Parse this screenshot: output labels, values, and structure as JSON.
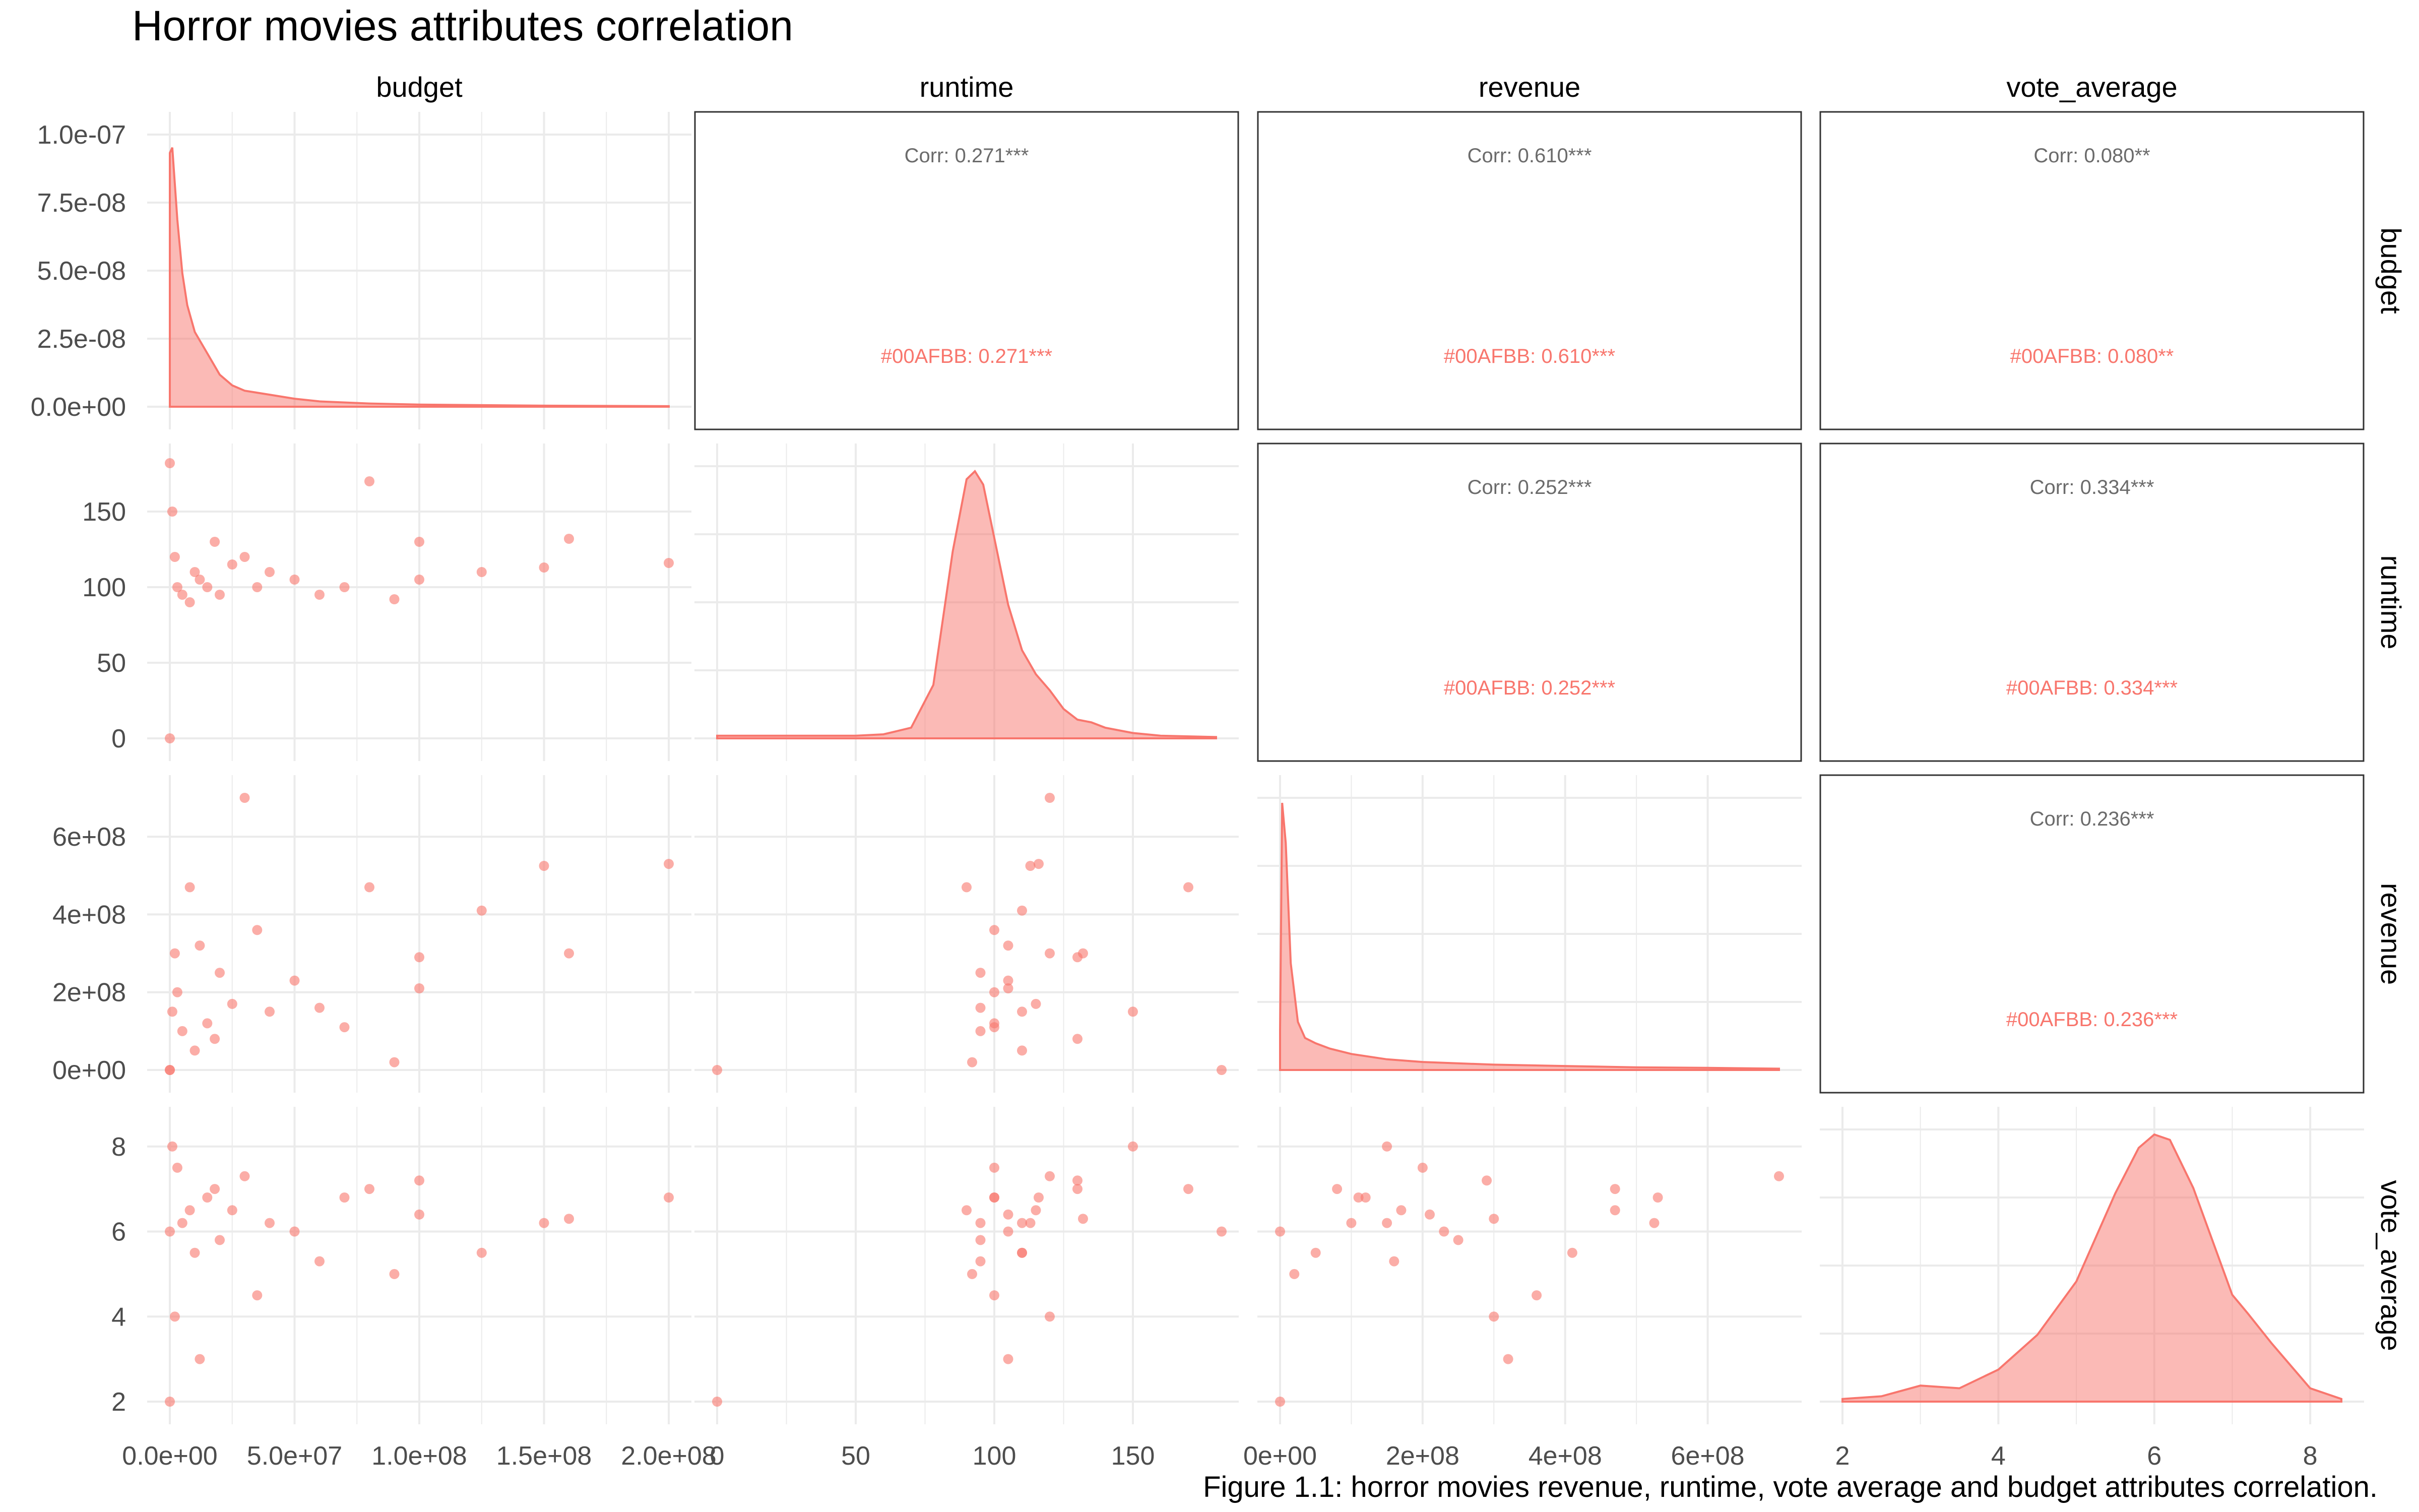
{
  "title": "Horror movies attributes correlation",
  "caption": "Figure 1.1: horror movies revenue, runtime, vote average and budget attributes correlation.",
  "colors": {
    "series": "#F8766D",
    "fill": "#F8766D",
    "corr_text": "#6b6b6b",
    "grid": "#ebebeb",
    "text": "#000000",
    "axis_text": "#4d4d4d"
  },
  "chart_data": {
    "type": "scatter",
    "variables": [
      "budget",
      "runtime",
      "revenue",
      "vote_average"
    ],
    "grid": true,
    "axes": {
      "budget": {
        "range": [
          0,
          200000000
        ],
        "ticks": [
          0,
          50000000,
          100000000,
          150000000,
          200000000
        ],
        "tick_labels": [
          "0.0e+00",
          "5.0e+07",
          "1.0e+08",
          "1.5e+08",
          "2.0e+08"
        ]
      },
      "runtime": {
        "range": [
          0,
          180
        ],
        "ticks": [
          0,
          50,
          100,
          150
        ],
        "tick_labels": [
          "0",
          "50",
          "100",
          "150"
        ]
      },
      "revenue": {
        "range": [
          0,
          700000000
        ],
        "ticks": [
          0,
          200000000,
          400000000,
          600000000
        ],
        "tick_labels": [
          "0e+00",
          "2e+08",
          "4e+08",
          "6e+08"
        ]
      },
      "vote_average": {
        "range": [
          2,
          8.4
        ],
        "ticks": [
          2,
          4,
          6,
          8
        ],
        "tick_labels": [
          "2",
          "4",
          "6",
          "8"
        ]
      }
    },
    "density_axis": {
      "range": [
        0,
        1e-07
      ],
      "ticks": [
        0,
        2.5e-08,
        5e-08,
        7.5e-08,
        1e-07
      ],
      "tick_labels": [
        "0.0e+00",
        "2.5e-08",
        "5.0e-08",
        "7.5e-08",
        "1.0e-07"
      ]
    },
    "densities": {
      "budget": {
        "x": [
          0,
          1000000.0,
          3000000.0,
          5000000.0,
          7000000.0,
          10000000.0,
          15000000.0,
          20000000.0,
          25000000.0,
          30000000.0,
          40000000.0,
          50000000.0,
          60000000.0,
          80000000.0,
          100000000.0,
          150000000.0,
          200000000.0
        ],
        "y": [
          0.95,
          0.97,
          0.7,
          0.5,
          0.38,
          0.28,
          0.2,
          0.12,
          0.08,
          0.06,
          0.045,
          0.03,
          0.02,
          0.012,
          0.008,
          0.004,
          0.002
        ]
      },
      "runtime": {
        "x": [
          0,
          50,
          60,
          70,
          78,
          85,
          90,
          93,
          96,
          100,
          105,
          110,
          115,
          120,
          125,
          130,
          135,
          140,
          150,
          160,
          180
        ],
        "y": [
          0.01,
          0.01,
          0.015,
          0.04,
          0.2,
          0.7,
          0.97,
          1.0,
          0.95,
          0.75,
          0.5,
          0.33,
          0.24,
          0.18,
          0.11,
          0.07,
          0.06,
          0.04,
          0.02,
          0.01,
          0.005
        ]
      },
      "revenue": {
        "x": [
          0,
          3000000.0,
          8000000.0,
          15000000.0,
          25000000.0,
          35000000.0,
          50000000.0,
          70000000.0,
          100000000.0,
          150000000.0,
          200000000.0,
          300000000.0,
          400000000.0,
          500000000.0,
          600000000.0,
          700000000.0
        ],
        "y": [
          0.15,
          1.0,
          0.85,
          0.4,
          0.18,
          0.12,
          0.1,
          0.08,
          0.06,
          0.04,
          0.03,
          0.02,
          0.015,
          0.01,
          0.008,
          0.005
        ]
      },
      "vote_average": {
        "x": [
          2,
          2.5,
          3,
          3.5,
          4,
          4.5,
          5,
          5.5,
          5.8,
          6,
          6.2,
          6.5,
          7,
          7.2,
          7.5,
          8,
          8.4
        ],
        "y": [
          0.01,
          0.02,
          0.06,
          0.05,
          0.12,
          0.25,
          0.45,
          0.78,
          0.95,
          1.0,
          0.98,
          0.8,
          0.4,
          0.33,
          0.22,
          0.05,
          0.01
        ]
      }
    },
    "correlations": [
      {
        "row": "budget",
        "col": "runtime",
        "overall": "Corr: 0.271***",
        "group": "#00AFBB: 0.271***"
      },
      {
        "row": "budget",
        "col": "revenue",
        "overall": "Corr: 0.610***",
        "group": "#00AFBB: 0.610***"
      },
      {
        "row": "budget",
        "col": "vote_average",
        "overall": "Corr: 0.080**",
        "group": "#00AFBB: 0.080**"
      },
      {
        "row": "runtime",
        "col": "revenue",
        "overall": "Corr: 0.252***",
        "group": "#00AFBB: 0.252***"
      },
      {
        "row": "runtime",
        "col": "vote_average",
        "overall": "Corr: 0.334***",
        "group": "#00AFBB: 0.334***"
      },
      {
        "row": "revenue",
        "col": "vote_average",
        "overall": "Corr: 0.236***",
        "group": "#00AFBB: 0.236***"
      }
    ],
    "scatter_points": [
      {
        "budget": 0,
        "runtime": 182,
        "revenue": 0,
        "vote_average": 6.0
      },
      {
        "budget": 0,
        "runtime": 0,
        "revenue": 0,
        "vote_average": 2.0
      },
      {
        "budget": 1000000,
        "runtime": 150,
        "revenue": 150000000,
        "vote_average": 8.0
      },
      {
        "budget": 2000000,
        "runtime": 120,
        "revenue": 300000000,
        "vote_average": 4.0
      },
      {
        "budget": 3000000,
        "runtime": 100,
        "revenue": 200000000,
        "vote_average": 7.5
      },
      {
        "budget": 5000000,
        "runtime": 95,
        "revenue": 100000000,
        "vote_average": 6.2
      },
      {
        "budget": 8000000,
        "runtime": 90,
        "revenue": 470000000,
        "vote_average": 6.5
      },
      {
        "budget": 10000000,
        "runtime": 110,
        "revenue": 50000000,
        "vote_average": 5.5
      },
      {
        "budget": 12000000,
        "runtime": 105,
        "revenue": 320000000,
        "vote_average": 3.0
      },
      {
        "budget": 15000000,
        "runtime": 100,
        "revenue": 120000000,
        "vote_average": 6.8
      },
      {
        "budget": 18000000,
        "runtime": 130,
        "revenue": 80000000,
        "vote_average": 7.0
      },
      {
        "budget": 20000000,
        "runtime": 95,
        "revenue": 250000000,
        "vote_average": 5.8
      },
      {
        "budget": 25000000,
        "runtime": 115,
        "revenue": 170000000,
        "vote_average": 6.5
      },
      {
        "budget": 30000000,
        "runtime": 120,
        "revenue": 700000000,
        "vote_average": 7.3
      },
      {
        "budget": 35000000,
        "runtime": 100,
        "revenue": 360000000,
        "vote_average": 4.5
      },
      {
        "budget": 40000000,
        "runtime": 110,
        "revenue": 150000000,
        "vote_average": 6.2
      },
      {
        "budget": 50000000,
        "runtime": 105,
        "revenue": 230000000,
        "vote_average": 6.0
      },
      {
        "budget": 60000000,
        "runtime": 95,
        "revenue": 160000000,
        "vote_average": 5.3
      },
      {
        "budget": 70000000,
        "runtime": 100,
        "revenue": 110000000,
        "vote_average": 6.8
      },
      {
        "budget": 80000000,
        "runtime": 170,
        "revenue": 470000000,
        "vote_average": 7.0
      },
      {
        "budget": 90000000,
        "runtime": 92,
        "revenue": 20000000,
        "vote_average": 5.0
      },
      {
        "budget": 100000000,
        "runtime": 130,
        "revenue": 290000000,
        "vote_average": 7.2
      },
      {
        "budget": 100000000,
        "runtime": 105,
        "revenue": 210000000,
        "vote_average": 6.4
      },
      {
        "budget": 125000000,
        "runtime": 110,
        "revenue": 410000000,
        "vote_average": 5.5
      },
      {
        "budget": 150000000,
        "runtime": 113,
        "revenue": 525000000,
        "vote_average": 6.2
      },
      {
        "budget": 160000000,
        "runtime": 132,
        "revenue": 300000000,
        "vote_average": 6.3
      },
      {
        "budget": 200000000,
        "runtime": 116,
        "revenue": 530000000,
        "vote_average": 6.8
      }
    ]
  }
}
